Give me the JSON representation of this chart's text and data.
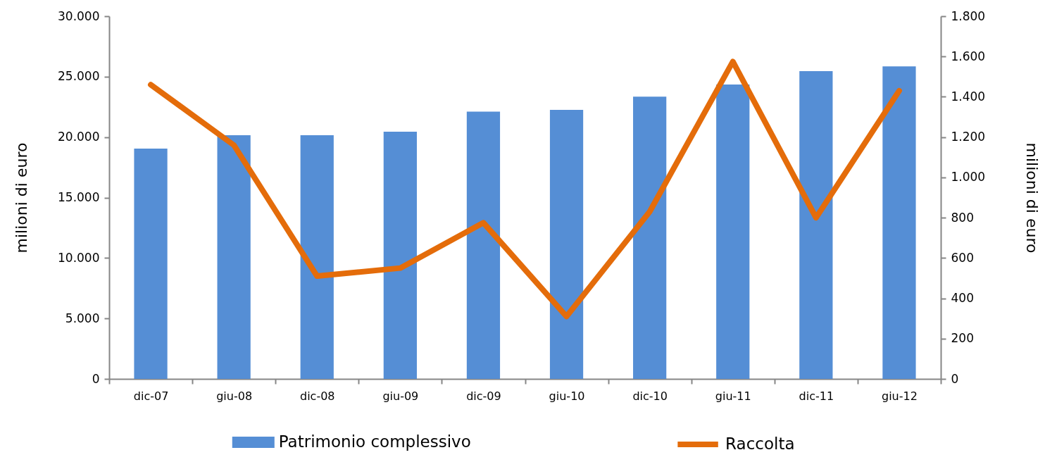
{
  "chart_data": {
    "type": "bar",
    "categories": [
      "dic-07",
      "giu-08",
      "dic-08",
      "giu-09",
      "dic-09",
      "giu-10",
      "dic-10",
      "giu-11",
      "dic-11",
      "giu-12"
    ],
    "series": [
      {
        "name": "Patrimonio complessivo",
        "color": "#558ed5",
        "values": [
          19050,
          20150,
          20150,
          20450,
          22100,
          22250,
          23350,
          24350,
          25450,
          25850
        ]
      },
      {
        "name": "Raccolta",
        "type": "line",
        "axis": "y2",
        "color": "#e46c0a",
        "values": [
          1460,
          1160,
          510,
          550,
          775,
          310,
          830,
          1575,
          800,
          1430
        ]
      }
    ],
    "ylabel": "milioni di euro",
    "y2label": "milioni di euro",
    "ylim": [
      0,
      30000
    ],
    "yticks": [
      0,
      {
        "value": 5000,
        "label": "5.000"
      },
      {
        "value": 10000,
        "label": "10.000"
      },
      {
        "value": 15000,
        "label": "15.000"
      },
      {
        "value": 20000,
        "label": "20.000"
      },
      {
        "value": 25000,
        "label": "25.000"
      },
      {
        "value": 30000,
        "label": "30.000"
      }
    ],
    "y2lim": [
      0,
      1800
    ],
    "y2ticks": [
      0,
      200,
      400,
      600,
      800,
      {
        "value": 1000,
        "label": "1.000"
      },
      {
        "value": 1200,
        "label": "1.200"
      },
      {
        "value": 1400,
        "label": "1.400"
      },
      {
        "value": 1600,
        "label": "1.600"
      },
      {
        "value": 1800,
        "label": "1.800"
      }
    ],
    "grid": false,
    "legend": "bottom",
    "marker": "none",
    "line_style": "solid"
  }
}
